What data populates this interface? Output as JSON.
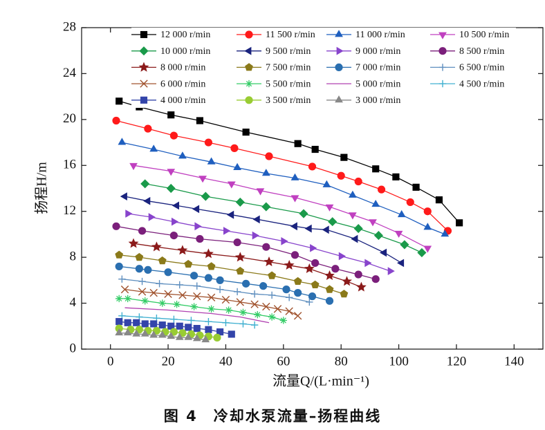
{
  "chart_data": {
    "type": "line",
    "caption": "图 4　冷却水泵流量–扬程曲线",
    "x_label": "流量Q/(L·min⁻¹)",
    "y_label": "扬程H/m",
    "xlim": [
      -10,
      150
    ],
    "xticks": [
      0,
      20,
      40,
      60,
      80,
      100,
      120,
      140
    ],
    "ylim": [
      0,
      28
    ],
    "yticks": [
      0,
      4,
      8,
      12,
      16,
      20,
      24,
      28
    ],
    "grid": false,
    "legend": "top",
    "series": [
      {
        "name": "12 000 r/min",
        "color": "#000000",
        "marker": "square",
        "x": [
          3,
          10,
          21,
          31,
          47,
          65,
          71,
          81,
          92,
          99,
          106,
          114,
          121
        ],
        "values": [
          21.6,
          21.1,
          20.4,
          19.9,
          18.9,
          17.9,
          17.4,
          16.7,
          15.7,
          15.0,
          14.1,
          13.0,
          11.0
        ]
      },
      {
        "name": "11 500 r/min",
        "color": "#ff1a1a",
        "marker": "circle",
        "x": [
          2,
          13,
          22,
          34,
          43,
          55,
          70,
          80,
          86,
          94,
          104,
          110,
          117
        ],
        "values": [
          19.9,
          19.2,
          18.6,
          18.0,
          17.5,
          16.8,
          15.9,
          15.1,
          14.6,
          13.9,
          12.8,
          12.0,
          10.3
        ]
      },
      {
        "name": "11 000 r/min",
        "color": "#1f5fbf",
        "marker": "triangle-up",
        "x": [
          4,
          15,
          25,
          35,
          44,
          54,
          64,
          75,
          84,
          92,
          101,
          110,
          116
        ],
        "values": [
          18.0,
          17.4,
          16.8,
          16.3,
          15.8,
          15.3,
          14.9,
          14.3,
          13.4,
          12.6,
          11.7,
          10.6,
          10.0
        ]
      },
      {
        "name": "10 500 r/min",
        "color": "#c040c0",
        "marker": "triangle-down",
        "x": [
          8,
          21,
          32,
          42,
          52,
          64,
          76,
          84,
          91,
          100,
          110
        ],
        "values": [
          16.0,
          15.5,
          14.9,
          14.4,
          13.8,
          13.2,
          12.4,
          11.7,
          11.1,
          10.1,
          8.8
        ]
      },
      {
        "name": "10 000 r/min",
        "color": "#1a9a4a",
        "marker": "diamond",
        "x": [
          12,
          21,
          33,
          45,
          54,
          67,
          77,
          86,
          93,
          102,
          108
        ],
        "values": [
          14.4,
          14.0,
          13.3,
          12.8,
          12.4,
          11.8,
          11.1,
          10.5,
          9.9,
          9.1,
          8.4
        ]
      },
      {
        "name": "9 500 r/min",
        "color": "#1a237e",
        "marker": "triangle-left",
        "x": [
          5,
          13,
          23,
          30,
          42,
          51,
          64,
          69,
          75,
          85,
          95,
          101
        ],
        "values": [
          13.3,
          12.9,
          12.5,
          12.2,
          11.7,
          11.3,
          10.7,
          10.5,
          10.4,
          9.6,
          8.4,
          7.5
        ]
      },
      {
        "name": "9 000 r/min",
        "color": "#8844cc",
        "marker": "triangle-right",
        "x": [
          6,
          14,
          22,
          30,
          40,
          50,
          60,
          70,
          80,
          89,
          97
        ],
        "values": [
          11.8,
          11.5,
          11.1,
          10.7,
          10.3,
          9.9,
          9.4,
          8.8,
          8.1,
          7.5,
          6.8
        ]
      },
      {
        "name": "8 500 r/min",
        "color": "#7b1f7b",
        "marker": "circle",
        "x": [
          2,
          11,
          22,
          31,
          44,
          54,
          64,
          71,
          78,
          86,
          92
        ],
        "values": [
          10.7,
          10.3,
          9.9,
          9.6,
          9.3,
          8.9,
          8.2,
          7.5,
          7.0,
          6.5,
          6.1
        ]
      },
      {
        "name": "8 000 r/min",
        "color": "#8b1a1a",
        "marker": "star",
        "x": [
          8,
          16,
          25,
          34,
          45,
          55,
          62,
          69,
          76,
          82,
          87
        ],
        "values": [
          9.2,
          8.9,
          8.6,
          8.3,
          8.0,
          7.6,
          7.3,
          7.0,
          6.4,
          5.9,
          5.4
        ]
      },
      {
        "name": "7 500 r/min",
        "color": "#8b7a1a",
        "marker": "pentagon",
        "x": [
          3,
          10,
          18,
          27,
          35,
          45,
          56,
          65,
          71,
          76,
          81
        ],
        "values": [
          8.2,
          8.0,
          7.7,
          7.4,
          7.2,
          6.8,
          6.4,
          5.9,
          5.6,
          5.2,
          4.8
        ]
      },
      {
        "name": "7 000 r/min",
        "color": "#2a6fb0",
        "marker": "circle",
        "x": [
          3,
          10,
          13,
          20,
          29,
          34,
          38,
          47,
          53,
          61,
          65,
          70,
          76
        ],
        "values": [
          7.2,
          7.0,
          6.9,
          6.7,
          6.4,
          6.2,
          6.0,
          5.7,
          5.5,
          5.2,
          4.9,
          4.6,
          4.2
        ]
      },
      {
        "name": "6 500 r/min",
        "color": "#5f8fbf",
        "marker": "plus",
        "x": [
          4,
          11,
          17,
          24,
          30,
          38,
          44,
          50,
          56,
          62,
          69
        ],
        "values": [
          6.1,
          5.9,
          5.7,
          5.6,
          5.5,
          5.2,
          5.0,
          4.8,
          4.7,
          4.5,
          4.1
        ]
      },
      {
        "name": "6 000 r/min",
        "color": "#a0522d",
        "marker": "cross",
        "x": [
          5,
          11,
          15,
          20,
          25,
          30,
          35,
          40,
          45,
          50,
          54,
          58,
          62,
          65
        ],
        "values": [
          5.2,
          5.0,
          4.9,
          4.8,
          4.7,
          4.6,
          4.5,
          4.3,
          4.1,
          3.9,
          3.7,
          3.5,
          3.3,
          2.9
        ]
      },
      {
        "name": "5 500 r/min",
        "color": "#33cc66",
        "marker": "asterisk",
        "x": [
          3,
          6,
          12,
          18,
          23,
          29,
          35,
          41,
          46,
          51,
          56,
          60
        ],
        "values": [
          4.4,
          4.4,
          4.2,
          4.0,
          3.9,
          3.7,
          3.5,
          3.4,
          3.2,
          3.0,
          2.8,
          2.5
        ]
      },
      {
        "name": "5 000 r/min",
        "color": "#b040b0",
        "marker": "none",
        "x": [
          5,
          20,
          35,
          45,
          55
        ],
        "values": [
          3.6,
          3.4,
          3.1,
          2.8,
          2.3
        ]
      },
      {
        "name": "4 500 r/min",
        "color": "#40b0d0",
        "marker": "plus",
        "x": [
          4,
          10,
          16,
          22,
          28,
          34,
          40,
          46,
          50
        ],
        "values": [
          2.9,
          2.8,
          2.7,
          2.6,
          2.5,
          2.4,
          2.3,
          2.2,
          2.1
        ]
      },
      {
        "name": "4 000 r/min",
        "color": "#3344aa",
        "marker": "square",
        "x": [
          3,
          6,
          9,
          12,
          15,
          18,
          21,
          24,
          27,
          30,
          34,
          38,
          42
        ],
        "values": [
          2.4,
          2.3,
          2.3,
          2.2,
          2.2,
          2.1,
          2.0,
          2.0,
          1.9,
          1.8,
          1.7,
          1.5,
          1.3
        ]
      },
      {
        "name": "3 500 r/min",
        "color": "#99cc33",
        "marker": "circle",
        "x": [
          3,
          7,
          10,
          13,
          16,
          19,
          22,
          25,
          28,
          31,
          34,
          37
        ],
        "values": [
          1.8,
          1.7,
          1.7,
          1.6,
          1.6,
          1.5,
          1.5,
          1.4,
          1.3,
          1.2,
          1.1,
          1.0
        ]
      },
      {
        "name": "3 000 r/min",
        "color": "#888888",
        "marker": "triangle-up",
        "x": [
          3,
          6,
          9,
          12,
          15,
          18,
          21,
          24,
          27,
          30,
          33
        ],
        "values": [
          1.4,
          1.4,
          1.3,
          1.3,
          1.2,
          1.2,
          1.1,
          1.0,
          1.0,
          0.9,
          0.8
        ]
      }
    ]
  }
}
